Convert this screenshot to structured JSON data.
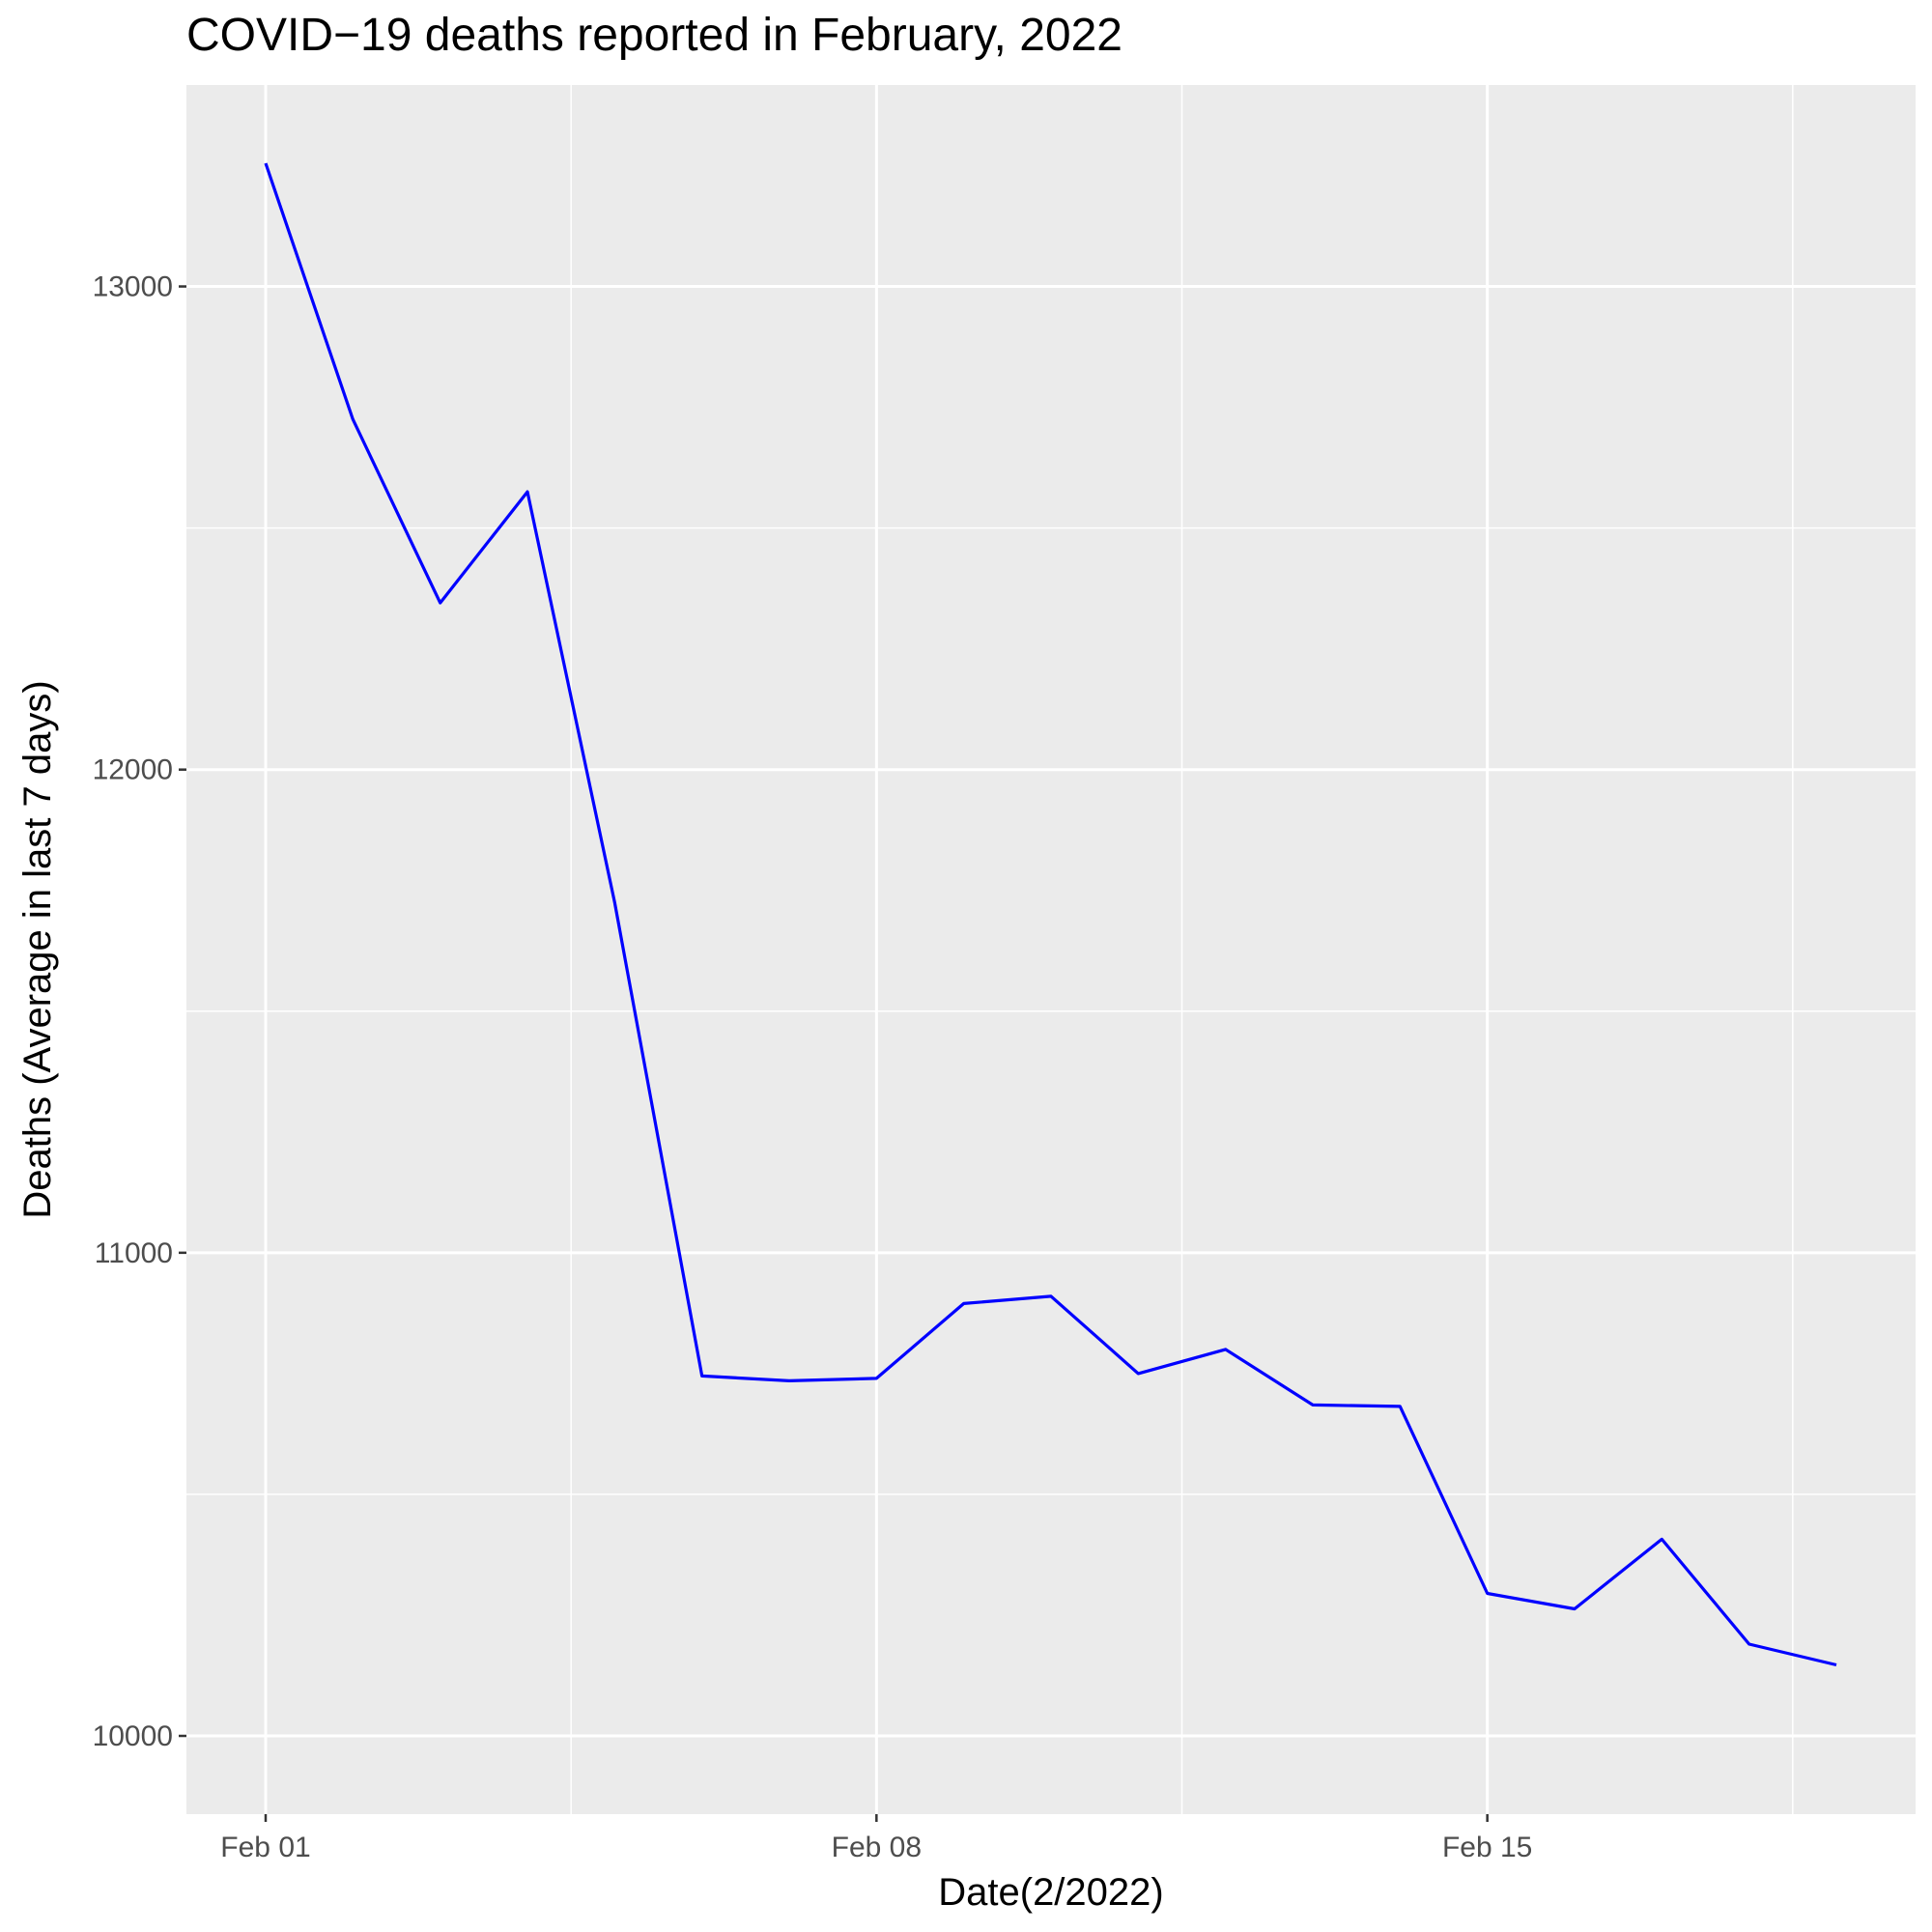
{
  "chart_data": {
    "type": "line",
    "title": "COVID−19 deaths reported in February, 2022",
    "xlabel": "Date(2/2022)",
    "ylabel": "Deaths (Average in last 7 days)",
    "x": [
      "2022-02-01",
      "2022-02-02",
      "2022-02-03",
      "2022-02-04",
      "2022-02-05",
      "2022-02-06",
      "2022-02-07",
      "2022-02-08",
      "2022-02-09",
      "2022-02-10",
      "2022-02-11",
      "2022-02-12",
      "2022-02-13",
      "2022-02-14",
      "2022-02-15",
      "2022-02-16",
      "2022-02-17",
      "2022-02-18",
      "2022-02-19"
    ],
    "series": [
      {
        "color": "#0000ff",
        "values": [
          13255,
          12725,
          12345,
          12575,
          11725,
          10745,
          10735,
          10740,
          10895,
          10910,
          10750,
          10800,
          10685,
          10682,
          10295,
          10263,
          10407,
          10190,
          10147
        ]
      }
    ],
    "xlim": [
      "2022-02-01",
      "2022-02-19"
    ],
    "ylim": [
      10000,
      13255
    ],
    "x_ticks": [
      {
        "date": "2022-02-01",
        "label": "Feb 01"
      },
      {
        "date": "2022-02-08",
        "label": "Feb 08"
      },
      {
        "date": "2022-02-15",
        "label": "Feb 15"
      }
    ],
    "y_ticks": [
      {
        "value": 10000,
        "label": "10000"
      },
      {
        "value": 11000,
        "label": "11000"
      },
      {
        "value": 12000,
        "label": "12000"
      },
      {
        "value": 13000,
        "label": "13000"
      }
    ],
    "grid": true,
    "legend": "none",
    "panel_color": "#ebebeb",
    "grid_color": "#ffffff"
  }
}
